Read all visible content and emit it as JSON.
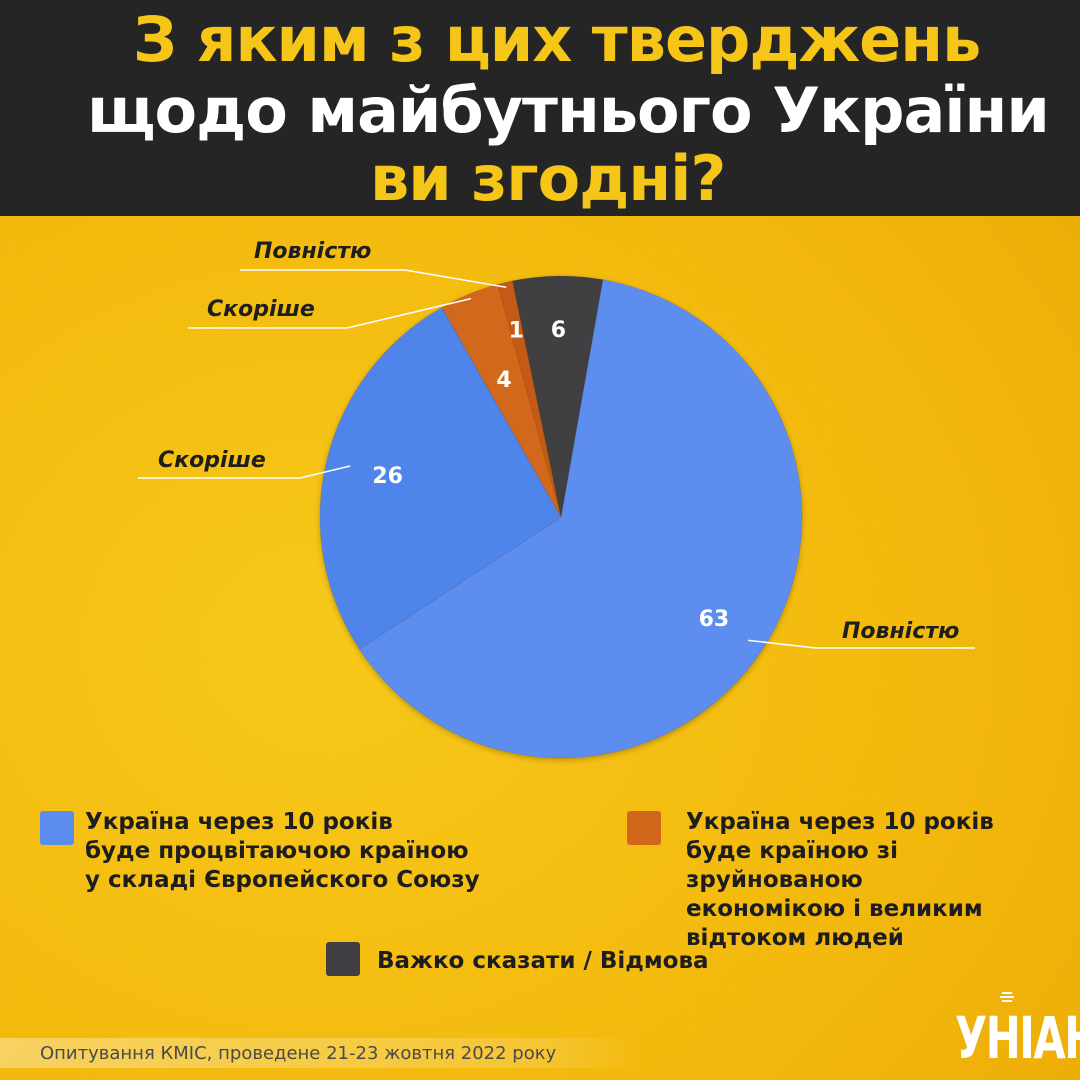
{
  "title": {
    "line1": "З яким з цих тверджень",
    "line2": "щодо майбутнього України",
    "line3": "ви згодні?"
  },
  "chart_data": {
    "type": "pie",
    "title": "З яким з цих тверджень щодо майбутнього України ви згодні?",
    "slices": [
      {
        "label": "Повністю",
        "value": 63,
        "category": "Україна через 10 років буде процвітаючою країною у складі Європейского Союзу",
        "color": "#5b8def"
      },
      {
        "label": "Скоріше",
        "value": 26,
        "category": "Україна через 10 років буде процвітаючою країною у складі Європейского Союзу",
        "color": "#4f84ea"
      },
      {
        "label": "Скоріше",
        "value": 4,
        "category": "Україна через 10 років буде країною зі зруйнованою економікою і великим відтоком людей",
        "color": "#d2671b"
      },
      {
        "label": "Повністю",
        "value": 1,
        "category": "Україна через 10 років буде країною зі зруйнованою економікою і великим відтоком людей",
        "color": "#c55a12"
      },
      {
        "label": "",
        "value": 6,
        "category": "Важко сказати / Відмова",
        "color": "#3f3f43"
      }
    ],
    "legend": [
      {
        "text": "Україна через 10 років\nбуде процвітаючою країною\nу складі Європейского Союзу",
        "color": "#5b8def"
      },
      {
        "text": "Україна через 10 років\nбуде країною зі зруйнованою\nекономікою і великим\nвідтоком людей",
        "color": "#d2671b"
      },
      {
        "text": "Важко сказати / Відмова",
        "color": "#3f3f43"
      }
    ],
    "legend_placement": "bottom"
  },
  "source": "Опитування КМІС, проведене 21-23 жовтня 2022 року",
  "logo": "УНІАН"
}
